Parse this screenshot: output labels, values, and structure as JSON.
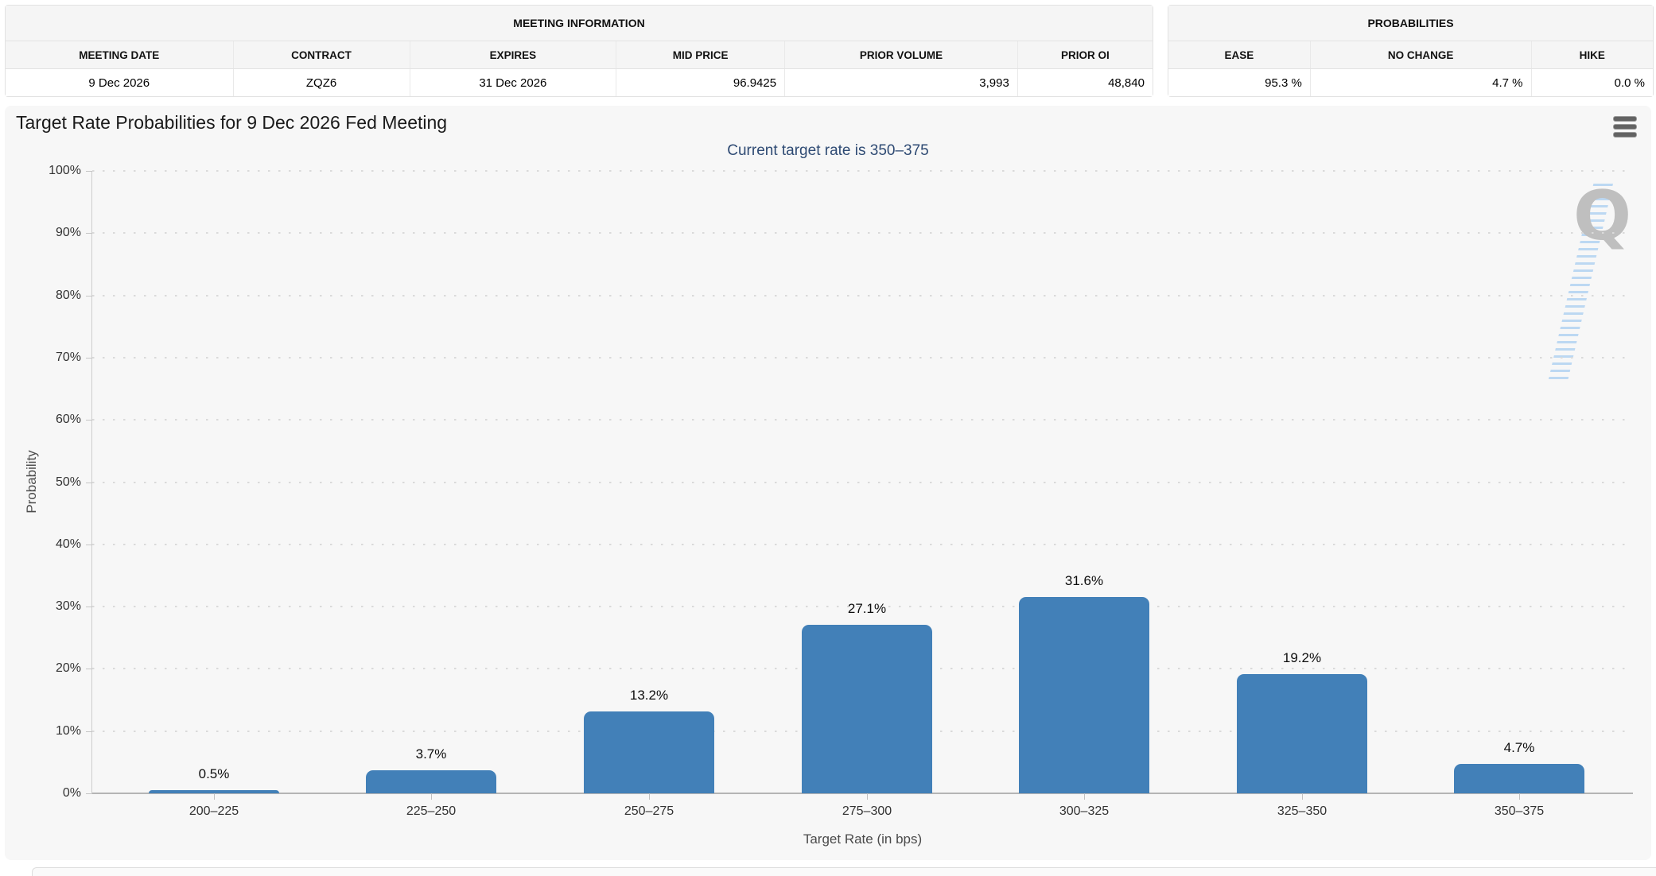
{
  "meeting_info": {
    "title": "MEETING INFORMATION",
    "columns": [
      "MEETING DATE",
      "CONTRACT",
      "EXPIRES",
      "MID PRICE",
      "PRIOR VOLUME",
      "PRIOR OI"
    ],
    "values": [
      "9 Dec 2026",
      "ZQZ6",
      "31 Dec 2026",
      "96.9425",
      "3,993",
      "48,840"
    ]
  },
  "probabilities_panel": {
    "title": "PROBABILITIES",
    "columns": [
      "EASE",
      "NO CHANGE",
      "HIKE"
    ],
    "values": [
      "95.3 %",
      "4.7 %",
      "0.0 %"
    ]
  },
  "chart": {
    "watermark_letter": "Q",
    "menu_icon": "hamburger-menu-icon"
  },
  "chart_data": {
    "type": "bar",
    "title": "Target Rate Probabilities for 9 Dec 2026 Fed Meeting",
    "subtitle": "Current target rate is 350–375",
    "categories": [
      "200–225",
      "225–250",
      "250–275",
      "275–300",
      "300–325",
      "325–350",
      "350–375"
    ],
    "values": [
      0.5,
      3.7,
      13.2,
      27.1,
      31.6,
      19.2,
      4.7
    ],
    "data_labels": [
      "0.5%",
      "3.7%",
      "13.2%",
      "27.1%",
      "31.6%",
      "19.2%",
      "4.7%"
    ],
    "xlabel": "Target Rate (in bps)",
    "ylabel": "Probability",
    "ylim": [
      0,
      100
    ],
    "ytick_step": 10,
    "ytick_suffix": "%",
    "grid": "dotted-horizontal",
    "legend": "none",
    "bar_color": "#4280B8",
    "subtitle_color": "#2E4A73"
  }
}
